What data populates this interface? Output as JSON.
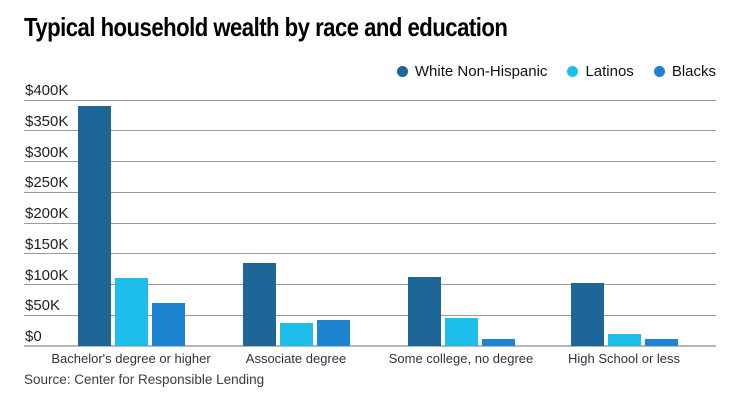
{
  "chart_data": {
    "type": "bar",
    "title": "Typical household wealth by race and education",
    "source": "Source: Center for Responsible Lending",
    "categories": [
      "Bachelor's degree or higher",
      "Associate degree",
      "Some college, no degree",
      "High School or less"
    ],
    "series": [
      {
        "name": "White Non-Hispanic",
        "color": "#1e6598",
        "values": [
          390000,
          135000,
          112000,
          103000
        ]
      },
      {
        "name": "Latinos",
        "color": "#1dbeea",
        "values": [
          110000,
          37000,
          45000,
          19000
        ]
      },
      {
        "name": "Blacks",
        "color": "#1d84d1",
        "values": [
          70000,
          42000,
          11000,
          12000
        ]
      }
    ],
    "y_ticks": [
      {
        "label": "$0",
        "value": 0
      },
      {
        "label": "$50K",
        "value": 50000
      },
      {
        "label": "$100K",
        "value": 100000
      },
      {
        "label": "$150K",
        "value": 150000
      },
      {
        "label": "$200K",
        "value": 200000
      },
      {
        "label": "$250K",
        "value": 250000
      },
      {
        "label": "$300K",
        "value": 300000
      },
      {
        "label": "$350K",
        "value": 350000
      },
      {
        "label": "$400K",
        "value": 400000
      }
    ],
    "ylim": [
      0,
      400000
    ],
    "grid": true,
    "legend_position": "top-right",
    "colors": {
      "gridline": "#9b9b9b",
      "axis_line": "#b4b7b9",
      "title_text": "#000000",
      "tick_text": "#222222",
      "source_text": "#3c3c3c"
    }
  }
}
